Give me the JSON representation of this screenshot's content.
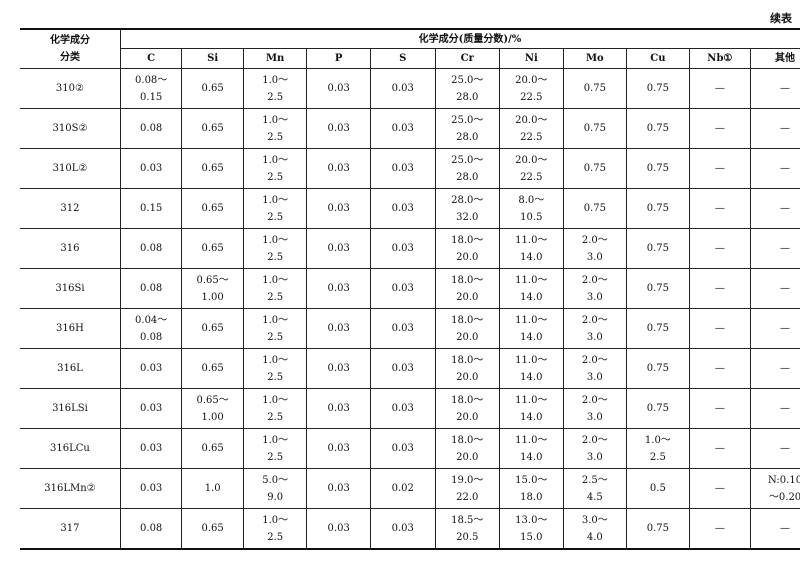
{
  "continued_label": "续表",
  "header": {
    "row_label": [
      "化学成分",
      "分类"
    ],
    "group_label": "化学成分(质量分数)/%",
    "columns": [
      "C",
      "Si",
      "Mn",
      "P",
      "S",
      "Cr",
      "Ni",
      "Mo",
      "Cu",
      "Nb①",
      "其他"
    ]
  },
  "rows": [
    {
      "grade": "310②",
      "cells": [
        [
          "0.08～",
          "0.15"
        ],
        [
          "0.65"
        ],
        [
          "1.0～",
          "2.5"
        ],
        [
          "0.03"
        ],
        [
          "0.03"
        ],
        [
          "25.0～",
          "28.0"
        ],
        [
          "20.0～",
          "22.5"
        ],
        [
          "0.75"
        ],
        [
          "0.75"
        ],
        [
          "—"
        ],
        [
          "—"
        ]
      ]
    },
    {
      "grade": "310S②",
      "cells": [
        [
          "0.08"
        ],
        [
          "0.65"
        ],
        [
          "1.0～",
          "2.5"
        ],
        [
          "0.03"
        ],
        [
          "0.03"
        ],
        [
          "25.0～",
          "28.0"
        ],
        [
          "20.0～",
          "22.5"
        ],
        [
          "0.75"
        ],
        [
          "0.75"
        ],
        [
          "—"
        ],
        [
          "—"
        ]
      ]
    },
    {
      "grade": "310L②",
      "cells": [
        [
          "0.03"
        ],
        [
          "0.65"
        ],
        [
          "1.0～",
          "2.5"
        ],
        [
          "0.03"
        ],
        [
          "0.03"
        ],
        [
          "25.0～",
          "28.0"
        ],
        [
          "20.0～",
          "22.5"
        ],
        [
          "0.75"
        ],
        [
          "0.75"
        ],
        [
          "—"
        ],
        [
          "—"
        ]
      ]
    },
    {
      "grade": "312",
      "cells": [
        [
          "0.15"
        ],
        [
          "0.65"
        ],
        [
          "1.0～",
          "2.5"
        ],
        [
          "0.03"
        ],
        [
          "0.03"
        ],
        [
          "28.0～",
          "32.0"
        ],
        [
          "8.0～",
          "10.5"
        ],
        [
          "0.75"
        ],
        [
          "0.75"
        ],
        [
          "—"
        ],
        [
          "—"
        ]
      ]
    },
    {
      "grade": "316",
      "cells": [
        [
          "0.08"
        ],
        [
          "0.65"
        ],
        [
          "1.0～",
          "2.5"
        ],
        [
          "0.03"
        ],
        [
          "0.03"
        ],
        [
          "18.0～",
          "20.0"
        ],
        [
          "11.0～",
          "14.0"
        ],
        [
          "2.0～",
          "3.0"
        ],
        [
          "0.75"
        ],
        [
          "—"
        ],
        [
          "—"
        ]
      ]
    },
    {
      "grade": "316Si",
      "cells": [
        [
          "0.08"
        ],
        [
          "0.65～",
          "1.00"
        ],
        [
          "1.0～",
          "2.5"
        ],
        [
          "0.03"
        ],
        [
          "0.03"
        ],
        [
          "18.0～",
          "20.0"
        ],
        [
          "11.0～",
          "14.0"
        ],
        [
          "2.0～",
          "3.0"
        ],
        [
          "0.75"
        ],
        [
          "—"
        ],
        [
          "—"
        ]
      ]
    },
    {
      "grade": "316H",
      "cells": [
        [
          "0.04～",
          "0.08"
        ],
        [
          "0.65"
        ],
        [
          "1.0～",
          "2.5"
        ],
        [
          "0.03"
        ],
        [
          "0.03"
        ],
        [
          "18.0～",
          "20.0"
        ],
        [
          "11.0～",
          "14.0"
        ],
        [
          "2.0～",
          "3.0"
        ],
        [
          "0.75"
        ],
        [
          "—"
        ],
        [
          "—"
        ]
      ]
    },
    {
      "grade": "316L",
      "cells": [
        [
          "0.03"
        ],
        [
          "0.65"
        ],
        [
          "1.0～",
          "2.5"
        ],
        [
          "0.03"
        ],
        [
          "0.03"
        ],
        [
          "18.0～",
          "20.0"
        ],
        [
          "11.0～",
          "14.0"
        ],
        [
          "2.0～",
          "3.0"
        ],
        [
          "0.75"
        ],
        [
          "—"
        ],
        [
          "—"
        ]
      ]
    },
    {
      "grade": "316LSi",
      "cells": [
        [
          "0.03"
        ],
        [
          "0.65～",
          "1.00"
        ],
        [
          "1.0～",
          "2.5"
        ],
        [
          "0.03"
        ],
        [
          "0.03"
        ],
        [
          "18.0～",
          "20.0"
        ],
        [
          "11.0～",
          "14.0"
        ],
        [
          "2.0～",
          "3.0"
        ],
        [
          "0.75"
        ],
        [
          "—"
        ],
        [
          "—"
        ]
      ]
    },
    {
      "grade": "316LCu",
      "cells": [
        [
          "0.03"
        ],
        [
          "0.65"
        ],
        [
          "1.0～",
          "2.5"
        ],
        [
          "0.03"
        ],
        [
          "0.03"
        ],
        [
          "18.0～",
          "20.0"
        ],
        [
          "11.0～",
          "14.0"
        ],
        [
          "2.0～",
          "3.0"
        ],
        [
          "1.0～",
          "2.5"
        ],
        [
          "—"
        ],
        [
          "—"
        ]
      ]
    },
    {
      "grade": "316LMn②",
      "cells": [
        [
          "0.03"
        ],
        [
          "1.0"
        ],
        [
          "5.0～",
          "9.0"
        ],
        [
          "0.03"
        ],
        [
          "0.02"
        ],
        [
          "19.0～",
          "22.0"
        ],
        [
          "15.0～",
          "18.0"
        ],
        [
          "2.5～",
          "4.5"
        ],
        [
          "0.5"
        ],
        [
          "—"
        ],
        [
          "N:0.10",
          "～0.20"
        ]
      ]
    },
    {
      "grade": "317",
      "cells": [
        [
          "0.08"
        ],
        [
          "0.65"
        ],
        [
          "1.0～",
          "2.5"
        ],
        [
          "0.03"
        ],
        [
          "0.03"
        ],
        [
          "18.5～",
          "20.5"
        ],
        [
          "13.0～",
          "15.0"
        ],
        [
          "3.0～",
          "4.0"
        ],
        [
          "0.75"
        ],
        [
          "—"
        ],
        [
          "—"
        ]
      ]
    }
  ]
}
